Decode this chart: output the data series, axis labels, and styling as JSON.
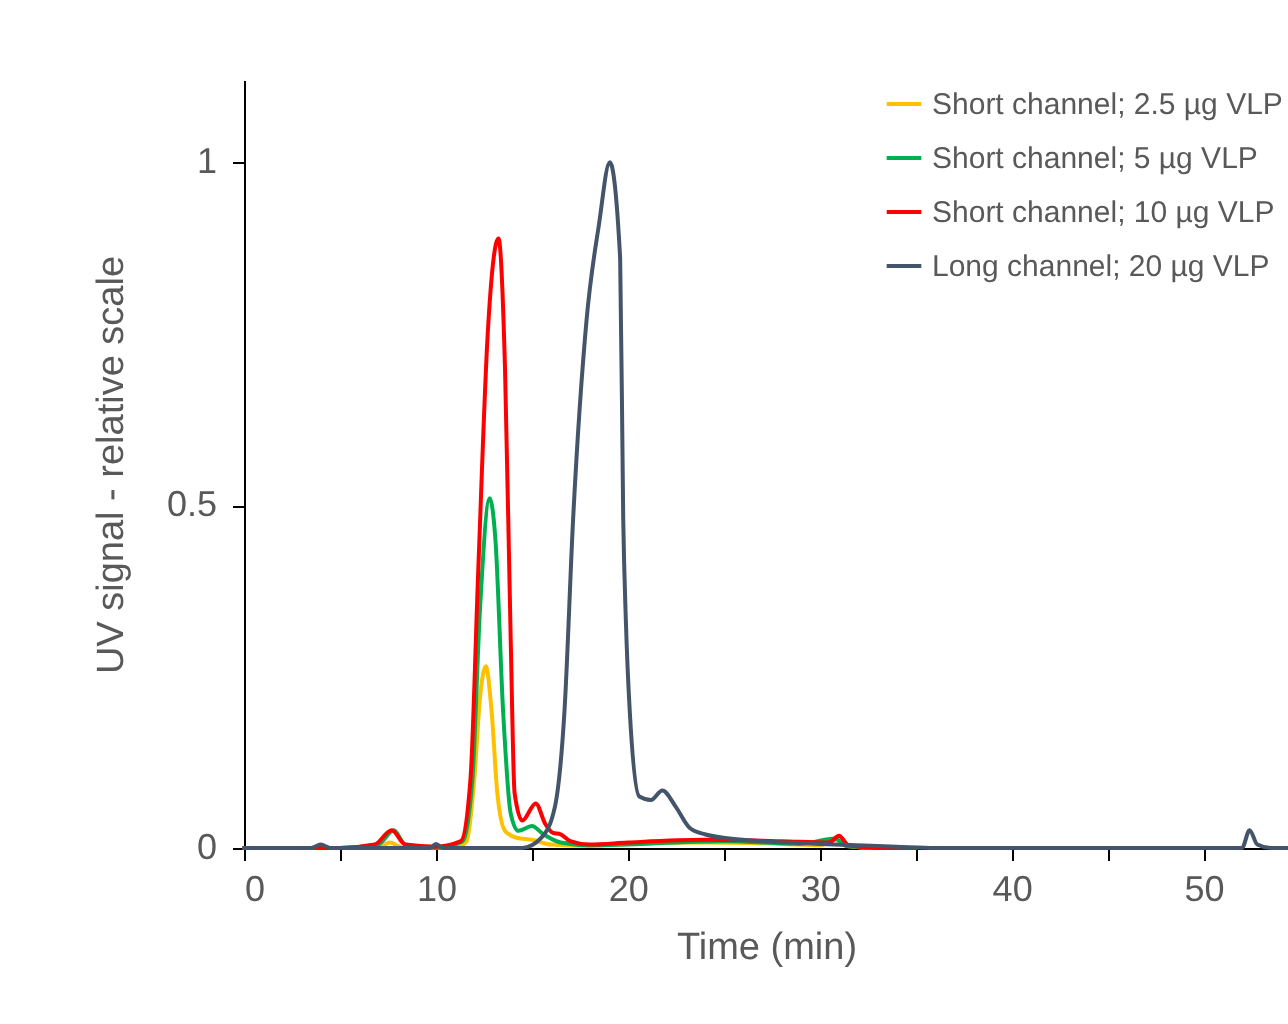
{
  "chart_data": {
    "type": "line",
    "xlabel": "Time (min)",
    "ylabel": "UV signal - relative scale",
    "xlim": [
      0,
      54.4
    ],
    "ylim": [
      0,
      1.12
    ],
    "xticks": [
      0,
      {
        "value": 5,
        "label": null
      },
      10,
      {
        "value": 15,
        "label": null
      },
      20,
      {
        "value": 25,
        "label": null
      },
      30,
      {
        "value": 35,
        "label": null
      },
      40,
      {
        "value": 45,
        "label": null
      },
      50
    ],
    "yticks": [
      0,
      0.5,
      1
    ],
    "grid": false,
    "legend": "top right",
    "marker": "none",
    "line_style": "solid",
    "series": [
      {
        "name": "Short channel; 2.5 µg VLP",
        "color": "#ffc000",
        "x": [
          0,
          5,
          7,
          7.6,
          8.3,
          11,
          11.6,
          12,
          12.3,
          12.6,
          12.9,
          13.2,
          13.6,
          14.2,
          15,
          16,
          18,
          20,
          24,
          28,
          30,
          30.8,
          31.4,
          33,
          35
        ],
        "values": [
          0,
          0,
          0,
          0.008,
          0,
          0,
          0.01,
          0.1,
          0.22,
          0.265,
          0.2,
          0.08,
          0.025,
          0.015,
          0.012,
          0.005,
          0.003,
          0.006,
          0.008,
          0.006,
          0.004,
          0.012,
          0.003,
          0,
          0
        ]
      },
      {
        "name": "Short channel; 5 µg VLP",
        "color": "#00b050",
        "x": [
          0,
          5,
          7,
          7.8,
          8.4,
          10,
          11.4,
          11.9,
          12.3,
          12.8,
          13.1,
          13.5,
          13.9,
          14.3,
          15,
          15.6,
          16.5,
          18,
          25,
          29,
          30.8,
          31.4,
          33,
          35
        ],
        "values": [
          0,
          0,
          0.005,
          0.026,
          0.005,
          0,
          0.01,
          0.1,
          0.35,
          0.51,
          0.45,
          0.2,
          0.05,
          0.025,
          0.032,
          0.02,
          0.008,
          0.004,
          0.01,
          0.006,
          0.014,
          0.003,
          0,
          0
        ]
      },
      {
        "name": "Short channel; 10 µg VLP",
        "color": "#ff0000",
        "x": [
          0,
          5,
          6.8,
          7.7,
          8.4,
          10,
          11.3,
          11.8,
          12.2,
          12.7,
          13.26,
          13.6,
          13.9,
          14.1,
          14.5,
          15.2,
          15.7,
          16.1,
          16.5,
          17,
          18,
          20,
          24,
          28,
          30.5,
          31,
          31.5,
          33,
          35
        ],
        "values": [
          0,
          0,
          0.005,
          0.026,
          0.005,
          0.002,
          0.01,
          0.1,
          0.4,
          0.75,
          0.889,
          0.7,
          0.3,
          0.08,
          0.04,
          0.065,
          0.035,
          0.022,
          0.02,
          0.01,
          0.005,
          0.008,
          0.012,
          0.01,
          0.008,
          0.018,
          0.004,
          0,
          0
        ]
      },
      {
        "name": "Long channel; 20 µg VLP",
        "color": "#44546a",
        "x": [
          0,
          3.5,
          4,
          4.5,
          9.7,
          10,
          10.4,
          14.5,
          15.5,
          16.2,
          16.7,
          17.15,
          17.85,
          18.5,
          19.06,
          19.6,
          19.76,
          19.9,
          20.1,
          20.6,
          21.2,
          21.8,
          22.5,
          23.2,
          24,
          26,
          30,
          34,
          36,
          52,
          52.4,
          52.8,
          53.5,
          54.4
        ],
        "values": [
          0,
          0,
          0.005,
          0,
          0,
          0.006,
          0,
          0,
          0.015,
          0.06,
          0.2,
          0.48,
          0.77,
          0.91,
          1.0,
          0.86,
          0.48,
          0.33,
          0.2,
          0.075,
          0.07,
          0.084,
          0.06,
          0.03,
          0.02,
          0.012,
          0.006,
          0.002,
          0,
          0,
          0.026,
          0.005,
          0,
          0
        ]
      }
    ]
  }
}
